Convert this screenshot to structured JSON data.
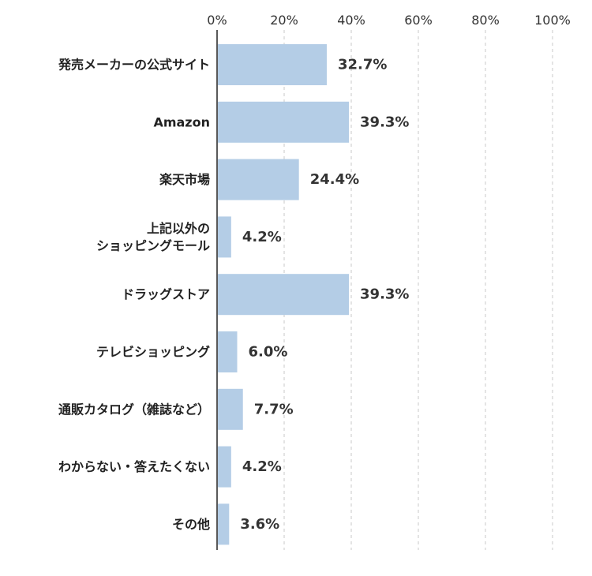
{
  "chart_data": {
    "type": "bar",
    "orientation": "horizontal",
    "categories": [
      [
        "発売メーカーの公式サイト"
      ],
      [
        "Amazon"
      ],
      [
        "楽天市場"
      ],
      [
        "上記以外の",
        "ショッピングモール"
      ],
      [
        "ドラッグストア"
      ],
      [
        "テレビショッピング"
      ],
      [
        "通販カタログ（雑誌など）"
      ],
      [
        "わからない・答えたくない"
      ],
      [
        "その他"
      ]
    ],
    "values": [
      32.7,
      39.3,
      24.4,
      4.2,
      39.3,
      6.0,
      7.7,
      4.2,
      3.6
    ],
    "value_labels": [
      "32.7%",
      "39.3%",
      "24.4%",
      "4.2%",
      "39.3%",
      "6.0%",
      "7.7%",
      "4.2%",
      "3.6%"
    ],
    "xlim": [
      0,
      100
    ],
    "x_ticks": [
      0,
      20,
      40,
      60,
      80,
      100
    ],
    "x_tick_labels": [
      "0%",
      "20%",
      "40%",
      "60%",
      "80%",
      "100%"
    ],
    "x_axis_position": "top",
    "grid": true,
    "bar_color": "#b4cde6",
    "title": "",
    "xlabel": "",
    "ylabel": ""
  }
}
